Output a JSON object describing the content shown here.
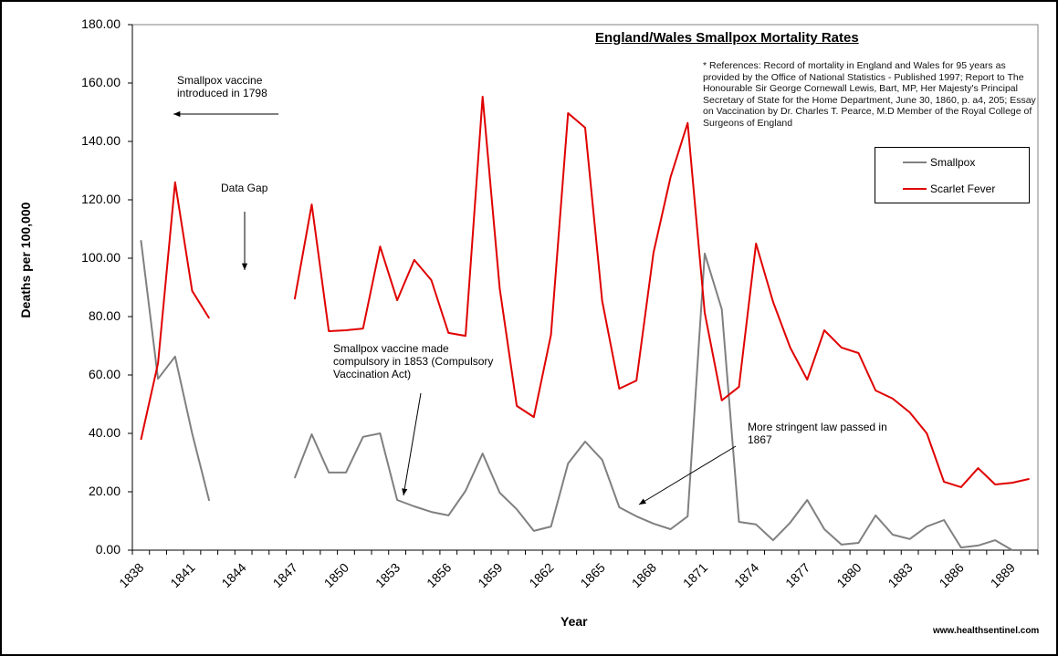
{
  "chart_data": {
    "type": "line",
    "title": "England/Wales Smallpox Mortality Rates",
    "xlabel": "Year",
    "ylabel": "Deaths per 100,000",
    "ylim": [
      0,
      180
    ],
    "yticks": [
      "0.00",
      "20.00",
      "40.00",
      "60.00",
      "80.00",
      "100.00",
      "120.00",
      "140.00",
      "160.00",
      "180.00"
    ],
    "x": [
      1838,
      1839,
      1840,
      1841,
      1842,
      1843,
      1844,
      1845,
      1846,
      1847,
      1848,
      1849,
      1850,
      1851,
      1852,
      1853,
      1854,
      1855,
      1856,
      1857,
      1858,
      1859,
      1860,
      1861,
      1862,
      1863,
      1864,
      1865,
      1866,
      1867,
      1868,
      1869,
      1870,
      1871,
      1872,
      1873,
      1874,
      1875,
      1876,
      1877,
      1878,
      1879,
      1880,
      1881,
      1882,
      1883,
      1884,
      1885,
      1886,
      1887,
      1888,
      1889,
      1890
    ],
    "xtick_labels": [
      "1838",
      "1841",
      "1844",
      "1847",
      "1850",
      "1853",
      "1856",
      "1859",
      "1862",
      "1865",
      "1868",
      "1871",
      "1874",
      "1877",
      "1880",
      "1883",
      "1886",
      "1889"
    ],
    "series": [
      {
        "name": "Smallpox",
        "color": "#808080",
        "values": [
          106.2,
          58.7,
          66.3,
          40,
          16.9,
          null,
          null,
          null,
          null,
          24.7,
          39.7,
          26.6,
          26.6,
          38.8,
          40,
          17.2,
          15,
          13.1,
          11.9,
          20.3,
          33.1,
          19.7,
          14,
          6.6,
          8.1,
          29.7,
          37.2,
          30.9,
          14.7,
          11.6,
          9.1,
          7.2,
          11.6,
          101.6,
          82.5,
          9.7,
          8.8,
          3.4,
          9.4,
          17.2,
          7.2,
          1.9,
          2.5,
          11.9,
          5.3,
          3.8,
          8.1,
          10.3,
          0.9,
          1.6,
          3.4,
          0,
          0
        ]
      },
      {
        "name": "Scarlet Fever",
        "color": "#e00000",
        "values": [
          37.8,
          64,
          126,
          88.8,
          79.4,
          null,
          null,
          null,
          null,
          85.9,
          118.4,
          75,
          75.3,
          75.9,
          104,
          85.6,
          99.4,
          92.5,
          74.4,
          73.4,
          155.3,
          89.7,
          49.4,
          45.6,
          73.8,
          149.7,
          144.7,
          85.3,
          55.3,
          58.1,
          101.9,
          127.8,
          146.3,
          81.3,
          51.3,
          55.9,
          105,
          85,
          69.4,
          58.4,
          75.3,
          69.4,
          67.5,
          54.7,
          51.9,
          47.2,
          40,
          23.4,
          21.6,
          28.1,
          22.5,
          23.1,
          24.4
        ]
      }
    ],
    "legend": "top-right",
    "grid": false,
    "annotations": [
      "Smallpox vaccine introduced in 1798",
      "Data Gap",
      "Smallpox vaccine made compulsory in 1853 (Compulsory Vaccination Act)",
      "More stringent law passed in 1867"
    ]
  },
  "references": "* References: Record of mortality in England and Wales for 95 years as provided by the Office of National Statistics - Published 1997; Report to The Honourable Sir George Cornewall Lewis, Bart, MP, Her Majesty's Principal Secretary of State for the Home Department, June 30, 1860, p. a4, 205; Essay on Vaccination by Dr. Charles T. Pearce, M.D Member of the Royal College of Surgeons of England",
  "annotations": {
    "vaccine_1798_line1": "Smallpox vaccine",
    "vaccine_1798_line2": "introduced in 1798",
    "data_gap": "Data Gap",
    "compulsory_line1": "Smallpox vaccine made",
    "compulsory_line2": "compulsory in 1853 (Compulsory",
    "compulsory_line3": "Vaccination Act)",
    "stringent_line1": "More stringent law passed in",
    "stringent_line2": "1867"
  },
  "website": "www.healthsentinel.com"
}
